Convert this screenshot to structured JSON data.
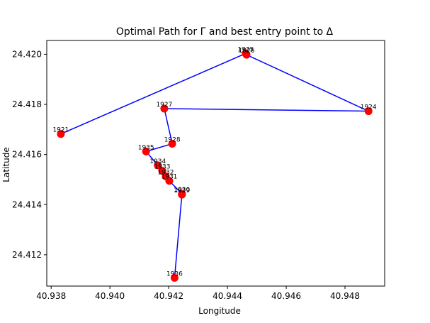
{
  "chart_data": {
    "type": "line",
    "title": "Optimal Path for Γ and best entry point to Δ",
    "xlabel": "Longitude",
    "ylabel": "Latitude",
    "xlim": [
      40.93785,
      40.94935
    ],
    "ylim": [
      24.41075,
      24.42055
    ],
    "x_ticks": [
      40.938,
      40.94,
      40.942,
      40.944,
      40.946,
      40.948
    ],
    "x_tick_labels": [
      "40.938",
      "40.940",
      "40.942",
      "40.944",
      "40.946",
      "40.948"
    ],
    "y_ticks": [
      24.412,
      24.414,
      24.416,
      24.418,
      24.42
    ],
    "y_tick_labels": [
      "24.412",
      "24.414",
      "24.416",
      "24.418",
      "24.420"
    ],
    "grid": false,
    "line_color": "#0000ff",
    "marker_color": "#ff0000",
    "points": [
      {
        "label": "1921",
        "x": 40.93833,
        "y": 24.41682
      },
      {
        "label": "1925",
        "x": 40.94462,
        "y": 24.42003
      },
      {
        "label": "1926",
        "x": 40.94465,
        "y": 24.41998
      },
      {
        "label": "1924",
        "x": 40.9488,
        "y": 24.41773
      },
      {
        "label": "1927",
        "x": 40.94185,
        "y": 24.41783
      },
      {
        "label": "1928",
        "x": 40.94212,
        "y": 24.41643
      },
      {
        "label": "1935",
        "x": 40.94123,
        "y": 24.41612
      },
      {
        "label": "1934",
        "x": 40.94163,
        "y": 24.41557
      },
      {
        "label": "1933",
        "x": 40.94178,
        "y": 24.41535
      },
      {
        "label": "1932",
        "x": 40.9419,
        "y": 24.41513
      },
      {
        "label": "1931",
        "x": 40.94202,
        "y": 24.41495
      },
      {
        "label": "1930",
        "x": 40.94245,
        "y": 24.41443
      },
      {
        "label": "1929",
        "x": 40.94245,
        "y": 24.4144
      },
      {
        "label": "1936",
        "x": 40.9422,
        "y": 24.41108
      }
    ]
  }
}
